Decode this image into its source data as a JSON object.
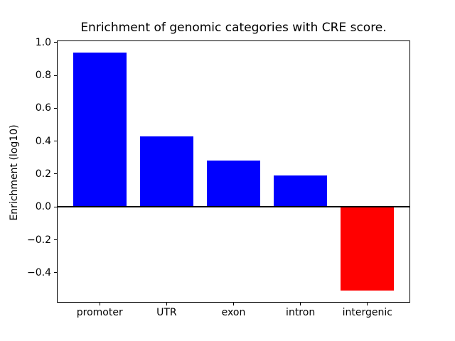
{
  "figure": {
    "background": "#ffffff",
    "text_color": "#000000"
  },
  "chart_data": {
    "type": "bar",
    "title": "Enrichment of genomic categories with CRE score.",
    "xlabel": "",
    "ylabel": "Enrichment (log10)",
    "categories": [
      "promoter",
      "UTR",
      "exon",
      "intron",
      "intergenic"
    ],
    "values": [
      0.94,
      0.43,
      0.28,
      0.19,
      -0.51
    ],
    "bar_colors": [
      "#0000ff",
      "#0000ff",
      "#0000ff",
      "#0000ff",
      "#ff0000"
    ],
    "positive_color": "#0000ff",
    "negative_color": "#ff0000",
    "bar_width": 0.8,
    "xlim": [
      -0.64,
      4.64
    ],
    "ylim": [
      -0.5825,
      1.0125
    ],
    "yticks": [
      1.0,
      0.8,
      0.6,
      0.4,
      0.2,
      0.0,
      -0.2,
      -0.4
    ],
    "ytick_labels": [
      "1.0",
      "0.8",
      "0.6",
      "0.4",
      "0.2",
      "0.0",
      "−0.2",
      "−0.4"
    ],
    "zero_line": true,
    "zero_line_color": "#000000",
    "grid": false,
    "legend": false
  }
}
